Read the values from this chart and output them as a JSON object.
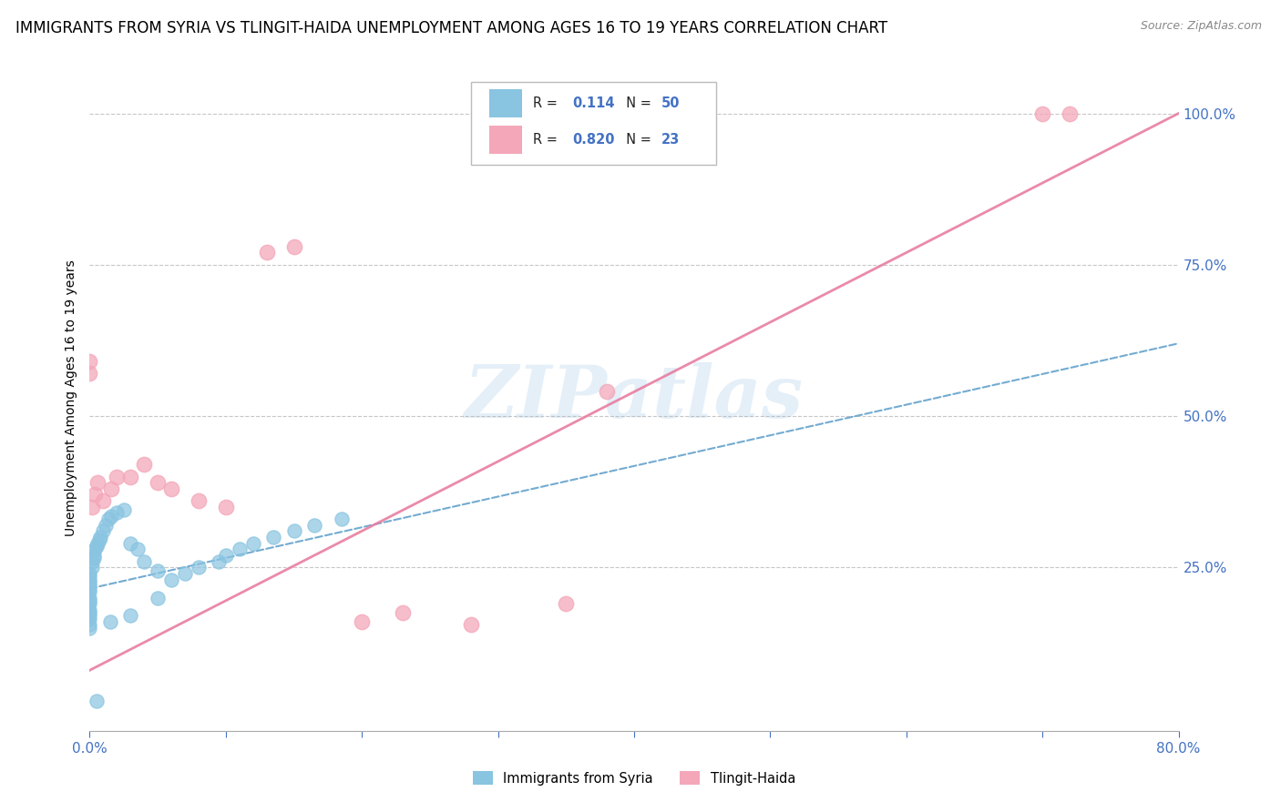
{
  "title": "IMMIGRANTS FROM SYRIA VS TLINGIT-HAIDA UNEMPLOYMENT AMONG AGES 16 TO 19 YEARS CORRELATION CHART",
  "source": "Source: ZipAtlas.com",
  "ylabel": "Unemployment Among Ages 16 to 19 years",
  "xlim": [
    0.0,
    0.8
  ],
  "ylim": [
    -0.02,
    1.08
  ],
  "xticks": [
    0.0,
    0.1,
    0.2,
    0.3,
    0.4,
    0.5,
    0.6,
    0.7,
    0.8
  ],
  "xticklabels": [
    "0.0%",
    "",
    "",
    "",
    "",
    "",
    "",
    "",
    "80.0%"
  ],
  "ytick_positions": [
    0.25,
    0.5,
    0.75,
    1.0
  ],
  "ytick_labels": [
    "25.0%",
    "50.0%",
    "75.0%",
    "100.0%"
  ],
  "blue_R": "0.114",
  "blue_N": "50",
  "pink_R": "0.820",
  "pink_N": "23",
  "blue_color": "#89c4e1",
  "blue_color_dark": "#5b9dc9",
  "pink_color": "#f4a7b9",
  "pink_color_dark": "#e87da0",
  "blue_scatter_x": [
    0.0,
    0.0,
    0.0,
    0.0,
    0.0,
    0.0,
    0.0,
    0.0,
    0.0,
    0.0,
    0.0,
    0.0,
    0.0,
    0.0,
    0.0,
    0.0,
    0.002,
    0.002,
    0.003,
    0.003,
    0.004,
    0.005,
    0.006,
    0.007,
    0.008,
    0.01,
    0.012,
    0.014,
    0.016,
    0.02,
    0.025,
    0.03,
    0.035,
    0.04,
    0.05,
    0.06,
    0.07,
    0.08,
    0.095,
    0.1,
    0.11,
    0.12,
    0.135,
    0.15,
    0.165,
    0.185,
    0.05,
    0.03,
    0.015,
    0.005
  ],
  "blue_scatter_y": [
    0.2,
    0.21,
    0.215,
    0.22,
    0.225,
    0.23,
    0.235,
    0.24,
    0.195,
    0.19,
    0.18,
    0.175,
    0.17,
    0.165,
    0.155,
    0.15,
    0.25,
    0.26,
    0.27,
    0.265,
    0.28,
    0.285,
    0.29,
    0.295,
    0.3,
    0.31,
    0.32,
    0.33,
    0.335,
    0.34,
    0.345,
    0.29,
    0.28,
    0.26,
    0.245,
    0.23,
    0.24,
    0.25,
    0.26,
    0.27,
    0.28,
    0.29,
    0.3,
    0.31,
    0.32,
    0.33,
    0.2,
    0.17,
    0.16,
    0.03
  ],
  "pink_scatter_x": [
    0.0,
    0.0,
    0.002,
    0.004,
    0.006,
    0.01,
    0.016,
    0.02,
    0.03,
    0.04,
    0.05,
    0.06,
    0.08,
    0.1,
    0.13,
    0.15,
    0.2,
    0.23,
    0.28,
    0.35,
    0.38,
    0.7,
    0.72
  ],
  "pink_scatter_y": [
    0.57,
    0.59,
    0.35,
    0.37,
    0.39,
    0.36,
    0.38,
    0.4,
    0.4,
    0.42,
    0.39,
    0.38,
    0.36,
    0.35,
    0.77,
    0.78,
    0.16,
    0.175,
    0.155,
    0.19,
    0.54,
    1.0,
    1.0
  ],
  "blue_line_x0": 0.0,
  "blue_line_y0": 0.215,
  "blue_line_x1": 0.8,
  "blue_line_y1": 0.62,
  "pink_line_x0": 0.0,
  "pink_line_y0": 0.08,
  "pink_line_x1": 0.8,
  "pink_line_y1": 1.0,
  "watermark": "ZIPatlas",
  "background_color": "#ffffff",
  "title_fontsize": 12,
  "tick_color": "#4472c4",
  "tick_fontsize": 11
}
